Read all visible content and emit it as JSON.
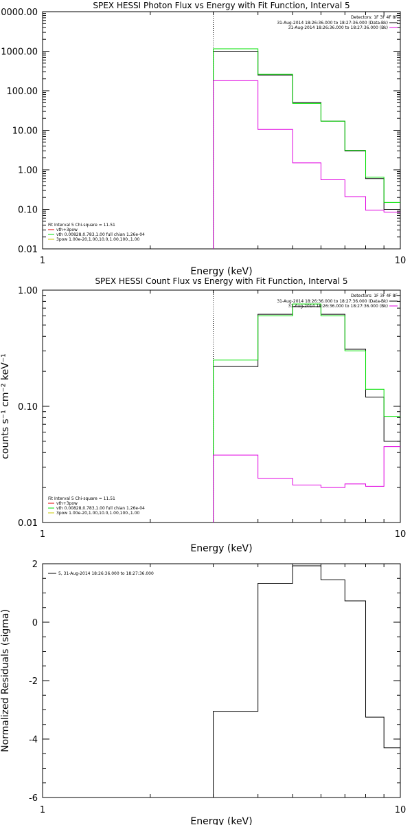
{
  "colors": {
    "black": "#000000",
    "green": "#00e000",
    "magenta": "#e000e0",
    "yellow": "#c8c800",
    "red": "#e00000"
  },
  "chart_data": [
    {
      "type": "line",
      "title": "SPEX HESSI Photon Flux vs Energy with Fit Function, Interval 5",
      "xlabel": "Energy (keV)",
      "ylabel": "",
      "xscale": "log",
      "yscale": "log",
      "xlim": [
        1,
        10
      ],
      "ylim": [
        0.01,
        10000
      ],
      "xticks": [
        {
          "v": 1,
          "label": "1"
        },
        {
          "v": 10,
          "label": "10"
        }
      ],
      "yticks": [
        {
          "v": 0.01,
          "label": "0.01"
        },
        {
          "v": 0.1,
          "label": "0.10"
        },
        {
          "v": 1,
          "label": "1.00"
        },
        {
          "v": 10,
          "label": "10.00"
        },
        {
          "v": 100,
          "label": "100.00"
        },
        {
          "v": 1000,
          "label": "1000.00"
        },
        {
          "v": 10000,
          "label": "10000.00"
        }
      ],
      "vline": 3,
      "edges": [
        3,
        4,
        5,
        6,
        7,
        8,
        9,
        10
      ],
      "series": [
        {
          "key": "data",
          "color": "#000000",
          "values": [
            1000,
            250,
            50,
            17,
            3,
            0.6,
            0.1
          ]
        },
        {
          "key": "green",
          "color": "#00e000",
          "values": [
            1150,
            260,
            48,
            17,
            3.1,
            0.65,
            0.15
          ]
        },
        {
          "key": "magenta",
          "color": "#e000e0",
          "values": [
            180,
            10.5,
            1.5,
            0.56,
            0.21,
            0.095,
            0.085
          ]
        }
      ],
      "legend_tr": {
        "header": "Detectors: 1F 3F 4F 8F",
        "items": [
          {
            "text": "31-Aug-2014 18:26:36.000 to 18:27:36.000 (Data-Bk)",
            "color": "#000000"
          },
          {
            "text": "31-Aug-2014 18:26:36.000 to 18:27:36.000 (Bk)",
            "color": "#e000e0"
          }
        ]
      },
      "legend_bl": {
        "header": "Fit Interval 5   Chi-square = 11.51",
        "items": [
          {
            "text": "vth+3pow",
            "color": "#e00000"
          },
          {
            "text": "vth 0.00828,0.783,1.00   full chian 1.26e-04",
            "color": "#00e000"
          },
          {
            "text": "3pow 1.00e-20,1.00,10.0,1.00,100.,1.00",
            "color": "#c8c800"
          }
        ]
      }
    },
    {
      "type": "line",
      "title": "SPEX HESSI Count Flux vs Energy with Fit Function, Interval 5",
      "xlabel": "Energy (keV)",
      "ylabel": "counts s⁻¹ cm⁻² keV⁻¹",
      "xscale": "log",
      "yscale": "log",
      "xlim": [
        1,
        10
      ],
      "ylim": [
        0.01,
        1
      ],
      "xticks": [
        {
          "v": 1,
          "label": "1"
        },
        {
          "v": 10,
          "label": "10"
        }
      ],
      "yticks": [
        {
          "v": 0.01,
          "label": "0.01"
        },
        {
          "v": 0.1,
          "label": "0.10"
        },
        {
          "v": 1,
          "label": "1.00"
        }
      ],
      "vline": 3,
      "edges": [
        3,
        4,
        5,
        6,
        7,
        8,
        9,
        10
      ],
      "series": [
        {
          "key": "data",
          "color": "#000000",
          "values": [
            0.22,
            0.62,
            0.72,
            0.62,
            0.31,
            0.12,
            0.05
          ]
        },
        {
          "key": "green",
          "color": "#00e000",
          "values": [
            0.25,
            0.6,
            0.76,
            0.6,
            0.3,
            0.14,
            0.082
          ]
        },
        {
          "key": "magenta",
          "color": "#e000e0",
          "values": [
            0.038,
            0.024,
            0.021,
            0.02,
            0.0215,
            0.0205,
            0.045
          ]
        }
      ],
      "legend_tr": {
        "header": "Detectors: 1F 3F 4F 8F",
        "items": [
          {
            "text": "31-Aug-2014 18:26:36.000 to 18:27:36.000 (Data-Bk)",
            "color": "#000000"
          },
          {
            "text": "31-Aug-2014 18:26:36.000 to 18:27:36.000 (Bk)",
            "color": "#e000e0"
          }
        ]
      },
      "legend_bl": {
        "header": "Fit Interval 5   Chi-square = 11.51",
        "items": [
          {
            "text": "vth+3pow",
            "color": "#e00000"
          },
          {
            "text": "vth 0.00828,0.783,1.00   full chian 1.26e-04",
            "color": "#00e000"
          },
          {
            "text": "3pow 1.00e-20,1.00,10.0,1.00,100.,1.00",
            "color": "#c8c800"
          }
        ]
      }
    },
    {
      "type": "line",
      "title": "",
      "xlabel": "Energy (keV)",
      "ylabel": "Normalized Residuals (sigma)",
      "xscale": "log",
      "yscale": "linear",
      "xlim": [
        1,
        10
      ],
      "ylim": [
        -6,
        2
      ],
      "xticks": [
        {
          "v": 1,
          "label": "1"
        },
        {
          "v": 10,
          "label": "10"
        }
      ],
      "yticks": [
        {
          "v": -6,
          "label": "-6"
        },
        {
          "v": -4,
          "label": "-4"
        },
        {
          "v": -2,
          "label": "-2"
        },
        {
          "v": 0,
          "label": "0"
        },
        {
          "v": 2,
          "label": "2"
        }
      ],
      "edges": [
        3,
        4,
        5,
        6,
        7,
        8,
        9,
        10
      ],
      "series": [
        {
          "key": "residuals",
          "color": "#000000",
          "values": [
            -3.05,
            1.33,
            1.93,
            1.45,
            0.73,
            -3.25,
            -4.3
          ]
        }
      ],
      "legend_tl": {
        "items": [
          {
            "text": "5, 31-Aug-2014 18:26:36.000 to 18:27:36.000",
            "color": "#000000"
          }
        ]
      }
    }
  ]
}
